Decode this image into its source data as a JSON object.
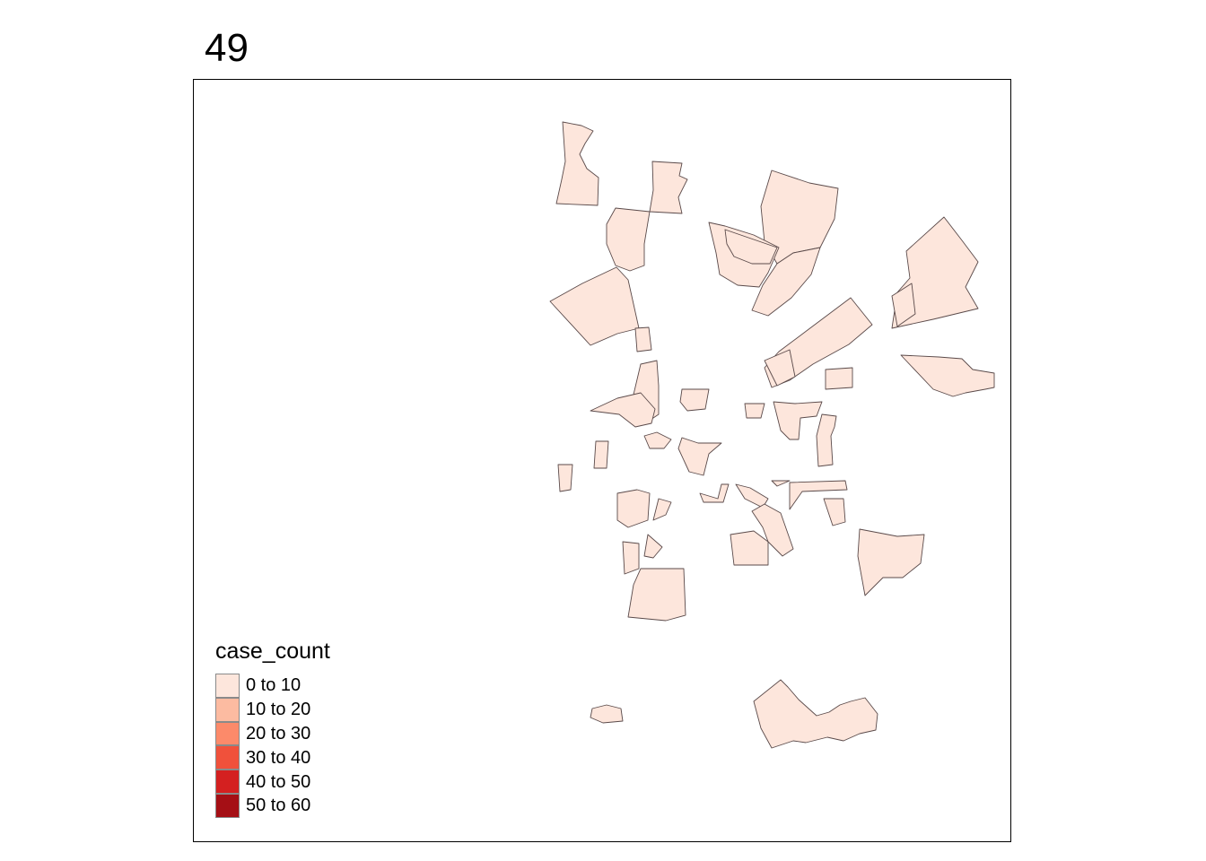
{
  "title": "49",
  "legend": {
    "title": "case_count",
    "items": [
      {
        "label": "0 to 10",
        "color": "#fde6dc"
      },
      {
        "label": "10 to 20",
        "color": "#fcbba1"
      },
      {
        "label": "20 to 30",
        "color": "#fc8a6a"
      },
      {
        "label": "30 to 40",
        "color": "#f0513b"
      },
      {
        "label": "40 to 50",
        "color": "#d42020"
      },
      {
        "label": "50 to 60",
        "color": "#a50f15"
      }
    ]
  },
  "map": {
    "fill_class": "0 to 10",
    "fill_color": "#fde6dc",
    "border_color": "#5a4a4a"
  }
}
